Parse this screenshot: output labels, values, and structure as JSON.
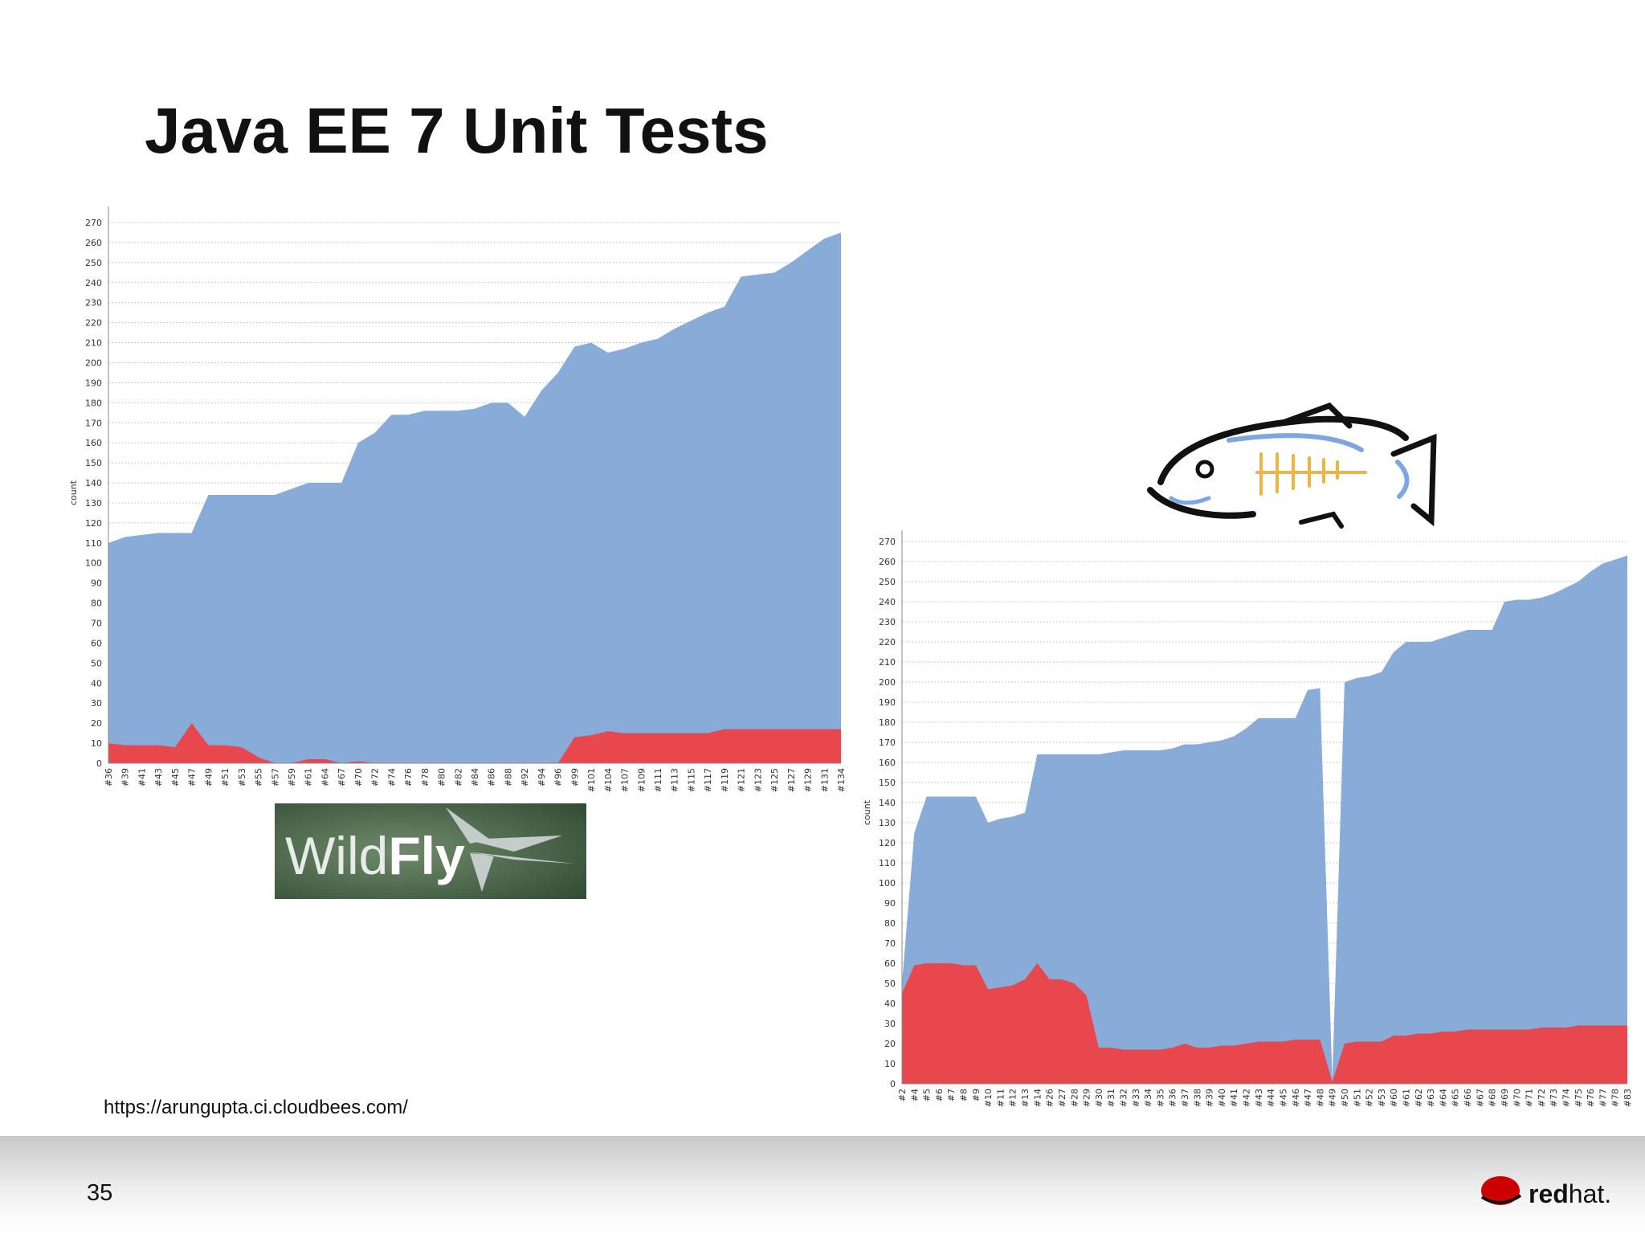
{
  "title": "Java EE 7 Unit Tests",
  "source_url": "https://arungupta.ci.cloudbees.com/",
  "page_number": "35",
  "logos": {
    "wildfly_light": "Wild",
    "wildfly_bold": "Fly",
    "redhat_bold": "red",
    "redhat_light": "hat."
  },
  "chart_data": [
    {
      "type": "area",
      "ylabel": "count",
      "grid": true,
      "ylim": [
        0,
        270
      ],
      "yticks": [
        0,
        10,
        20,
        30,
        40,
        50,
        60,
        70,
        80,
        90,
        100,
        110,
        120,
        130,
        140,
        150,
        160,
        170,
        180,
        190,
        200,
        210,
        220,
        230,
        240,
        250,
        260,
        270
      ],
      "categories": [
        "#36",
        "#39",
        "#41",
        "#43",
        "#45",
        "#47",
        "#49",
        "#51",
        "#53",
        "#55",
        "#57",
        "#59",
        "#61",
        "#64",
        "#67",
        "#70",
        "#72",
        "#74",
        "#76",
        "#78",
        "#80",
        "#82",
        "#84",
        "#86",
        "#88",
        "#92",
        "#94",
        "#96",
        "#99",
        "#101",
        "#104",
        "#107",
        "#109",
        "#111",
        "#113",
        "#115",
        "#117",
        "#119",
        "#121",
        "#123",
        "#125",
        "#127",
        "#129",
        "#131",
        "#134"
      ],
      "series": [
        {
          "color": "#88abd8",
          "values": [
            110,
            113,
            114,
            115,
            115,
            115,
            134,
            134,
            134,
            134,
            134,
            137,
            140,
            140,
            140,
            160,
            165,
            174,
            174,
            176,
            176,
            176,
            177,
            180,
            180,
            173,
            186,
            195,
            208,
            210,
            205,
            207,
            210,
            212,
            217,
            221,
            225,
            228,
            243,
            244,
            245,
            250,
            256,
            262,
            265
          ]
        },
        {
          "color": "#e8474e",
          "values": [
            10,
            9,
            9,
            9,
            8,
            20,
            9,
            9,
            8,
            3,
            0,
            0,
            2,
            2,
            0,
            1,
            0,
            0,
            0,
            0,
            0,
            0,
            0,
            0,
            0,
            0,
            0,
            0,
            13,
            14,
            16,
            15,
            15,
            15,
            15,
            15,
            15,
            17,
            17,
            17,
            17,
            17,
            17,
            17,
            17
          ]
        }
      ]
    },
    {
      "type": "area",
      "ylabel": "count",
      "grid": true,
      "ylim": [
        0,
        270
      ],
      "yticks": [
        0,
        10,
        20,
        30,
        40,
        50,
        60,
        70,
        80,
        90,
        100,
        110,
        120,
        130,
        140,
        150,
        160,
        170,
        180,
        190,
        200,
        210,
        220,
        230,
        240,
        250,
        260,
        270
      ],
      "categories": [
        "#2",
        "#4",
        "#5",
        "#6",
        "#7",
        "#8",
        "#9",
        "#10",
        "#11",
        "#12",
        "#13",
        "#14",
        "#26",
        "#27",
        "#28",
        "#29",
        "#30",
        "#31",
        "#32",
        "#33",
        "#34",
        "#35",
        "#36",
        "#37",
        "#38",
        "#39",
        "#40",
        "#41",
        "#42",
        "#43",
        "#44",
        "#45",
        "#46",
        "#47",
        "#48",
        "#49",
        "#50",
        "#51",
        "#52",
        "#53",
        "#60",
        "#61",
        "#62",
        "#63",
        "#64",
        "#65",
        "#66",
        "#67",
        "#68",
        "#69",
        "#70",
        "#71",
        "#72",
        "#73",
        "#74",
        "#75",
        "#76",
        "#77",
        "#78",
        "#83"
      ],
      "series": [
        {
          "color": "#88abd8",
          "values": [
            50,
            125,
            143,
            143,
            143,
            143,
            143,
            130,
            132,
            133,
            135,
            164,
            164,
            164,
            164,
            164,
            164,
            165,
            166,
            166,
            166,
            166,
            167,
            169,
            169,
            170,
            171,
            173,
            177,
            182,
            182,
            182,
            182,
            196,
            197,
            2,
            200,
            202,
            203,
            205,
            215,
            220,
            220,
            220,
            222,
            224,
            226,
            226,
            226,
            240,
            241,
            241,
            242,
            244,
            247,
            250,
            255,
            259,
            261,
            263
          ]
        },
        {
          "color": "#e8474e",
          "values": [
            45,
            59,
            60,
            60,
            60,
            59,
            59,
            47,
            48,
            49,
            52,
            60,
            52,
            52,
            50,
            44,
            18,
            18,
            17,
            17,
            17,
            17,
            18,
            20,
            18,
            18,
            19,
            19,
            20,
            21,
            21,
            21,
            22,
            22,
            22,
            1,
            20,
            21,
            21,
            21,
            24,
            24,
            25,
            25,
            26,
            26,
            27,
            27,
            27,
            27,
            27,
            27,
            28,
            28,
            28,
            29,
            29,
            29,
            29,
            29
          ]
        }
      ]
    }
  ]
}
